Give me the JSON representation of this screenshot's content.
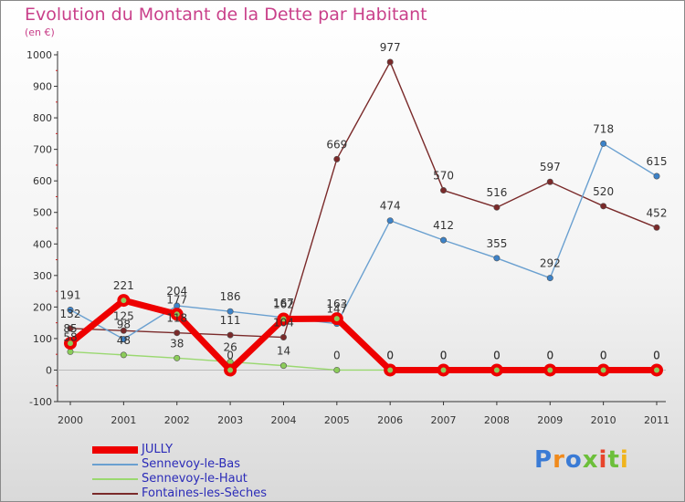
{
  "chart_data": {
    "type": "line",
    "title": "Evolution du Montant de la Dette par Habitant",
    "unit": "(en €)",
    "xlabel": "",
    "ylabel": "",
    "x": [
      "2000",
      "2001",
      "2002",
      "2003",
      "2004",
      "2005",
      "2006",
      "2007",
      "2008",
      "2009",
      "2010",
      "2011"
    ],
    "ylim": [
      -100,
      1000
    ],
    "yticks": [
      -100,
      0,
      100,
      200,
      300,
      400,
      500,
      600,
      700,
      800,
      900,
      1000
    ],
    "grid": false,
    "legend_position": "bottom-left",
    "series": [
      {
        "name": "Fontaines-les-Sèches",
        "color": "#7a2a2a",
        "marker": "#7a2a2a",
        "values": [
          132,
          125,
          118,
          111,
          104,
          669,
          977,
          570,
          516,
          597,
          520,
          452
        ]
      },
      {
        "name": "Sennevoy-le-Bas",
        "color": "#6aa0d0",
        "marker": "#3c82c8",
        "values": [
          191,
          98,
          204,
          186,
          167,
          147,
          474,
          412,
          355,
          292,
          718,
          615
        ]
      },
      {
        "name": "Sennevoy-le-Haut",
        "color": "#9ad870",
        "marker": "#8ccc5a",
        "values": [
          58,
          48,
          38,
          26,
          14,
          0,
          0,
          0,
          0,
          0,
          0,
          0
        ]
      },
      {
        "name": "JULLY",
        "color": "#ee0000",
        "marker": "#ee0000",
        "values": [
          85,
          221,
          177,
          0,
          162,
          163,
          0,
          0,
          0,
          0,
          0,
          0
        ]
      }
    ],
    "legend_order": [
      "JULLY",
      "Sennevoy-le-Bas",
      "Sennevoy-le-Haut",
      "Fontaines-les-Sèches"
    ]
  },
  "brand": {
    "text": "Proxiti",
    "letter_colors": [
      "#3a7bd5",
      "#f08a1c",
      "#3a7bd5",
      "#6cbf3a",
      "#e8452c",
      "#6cbf3a",
      "#f0b41c"
    ]
  }
}
